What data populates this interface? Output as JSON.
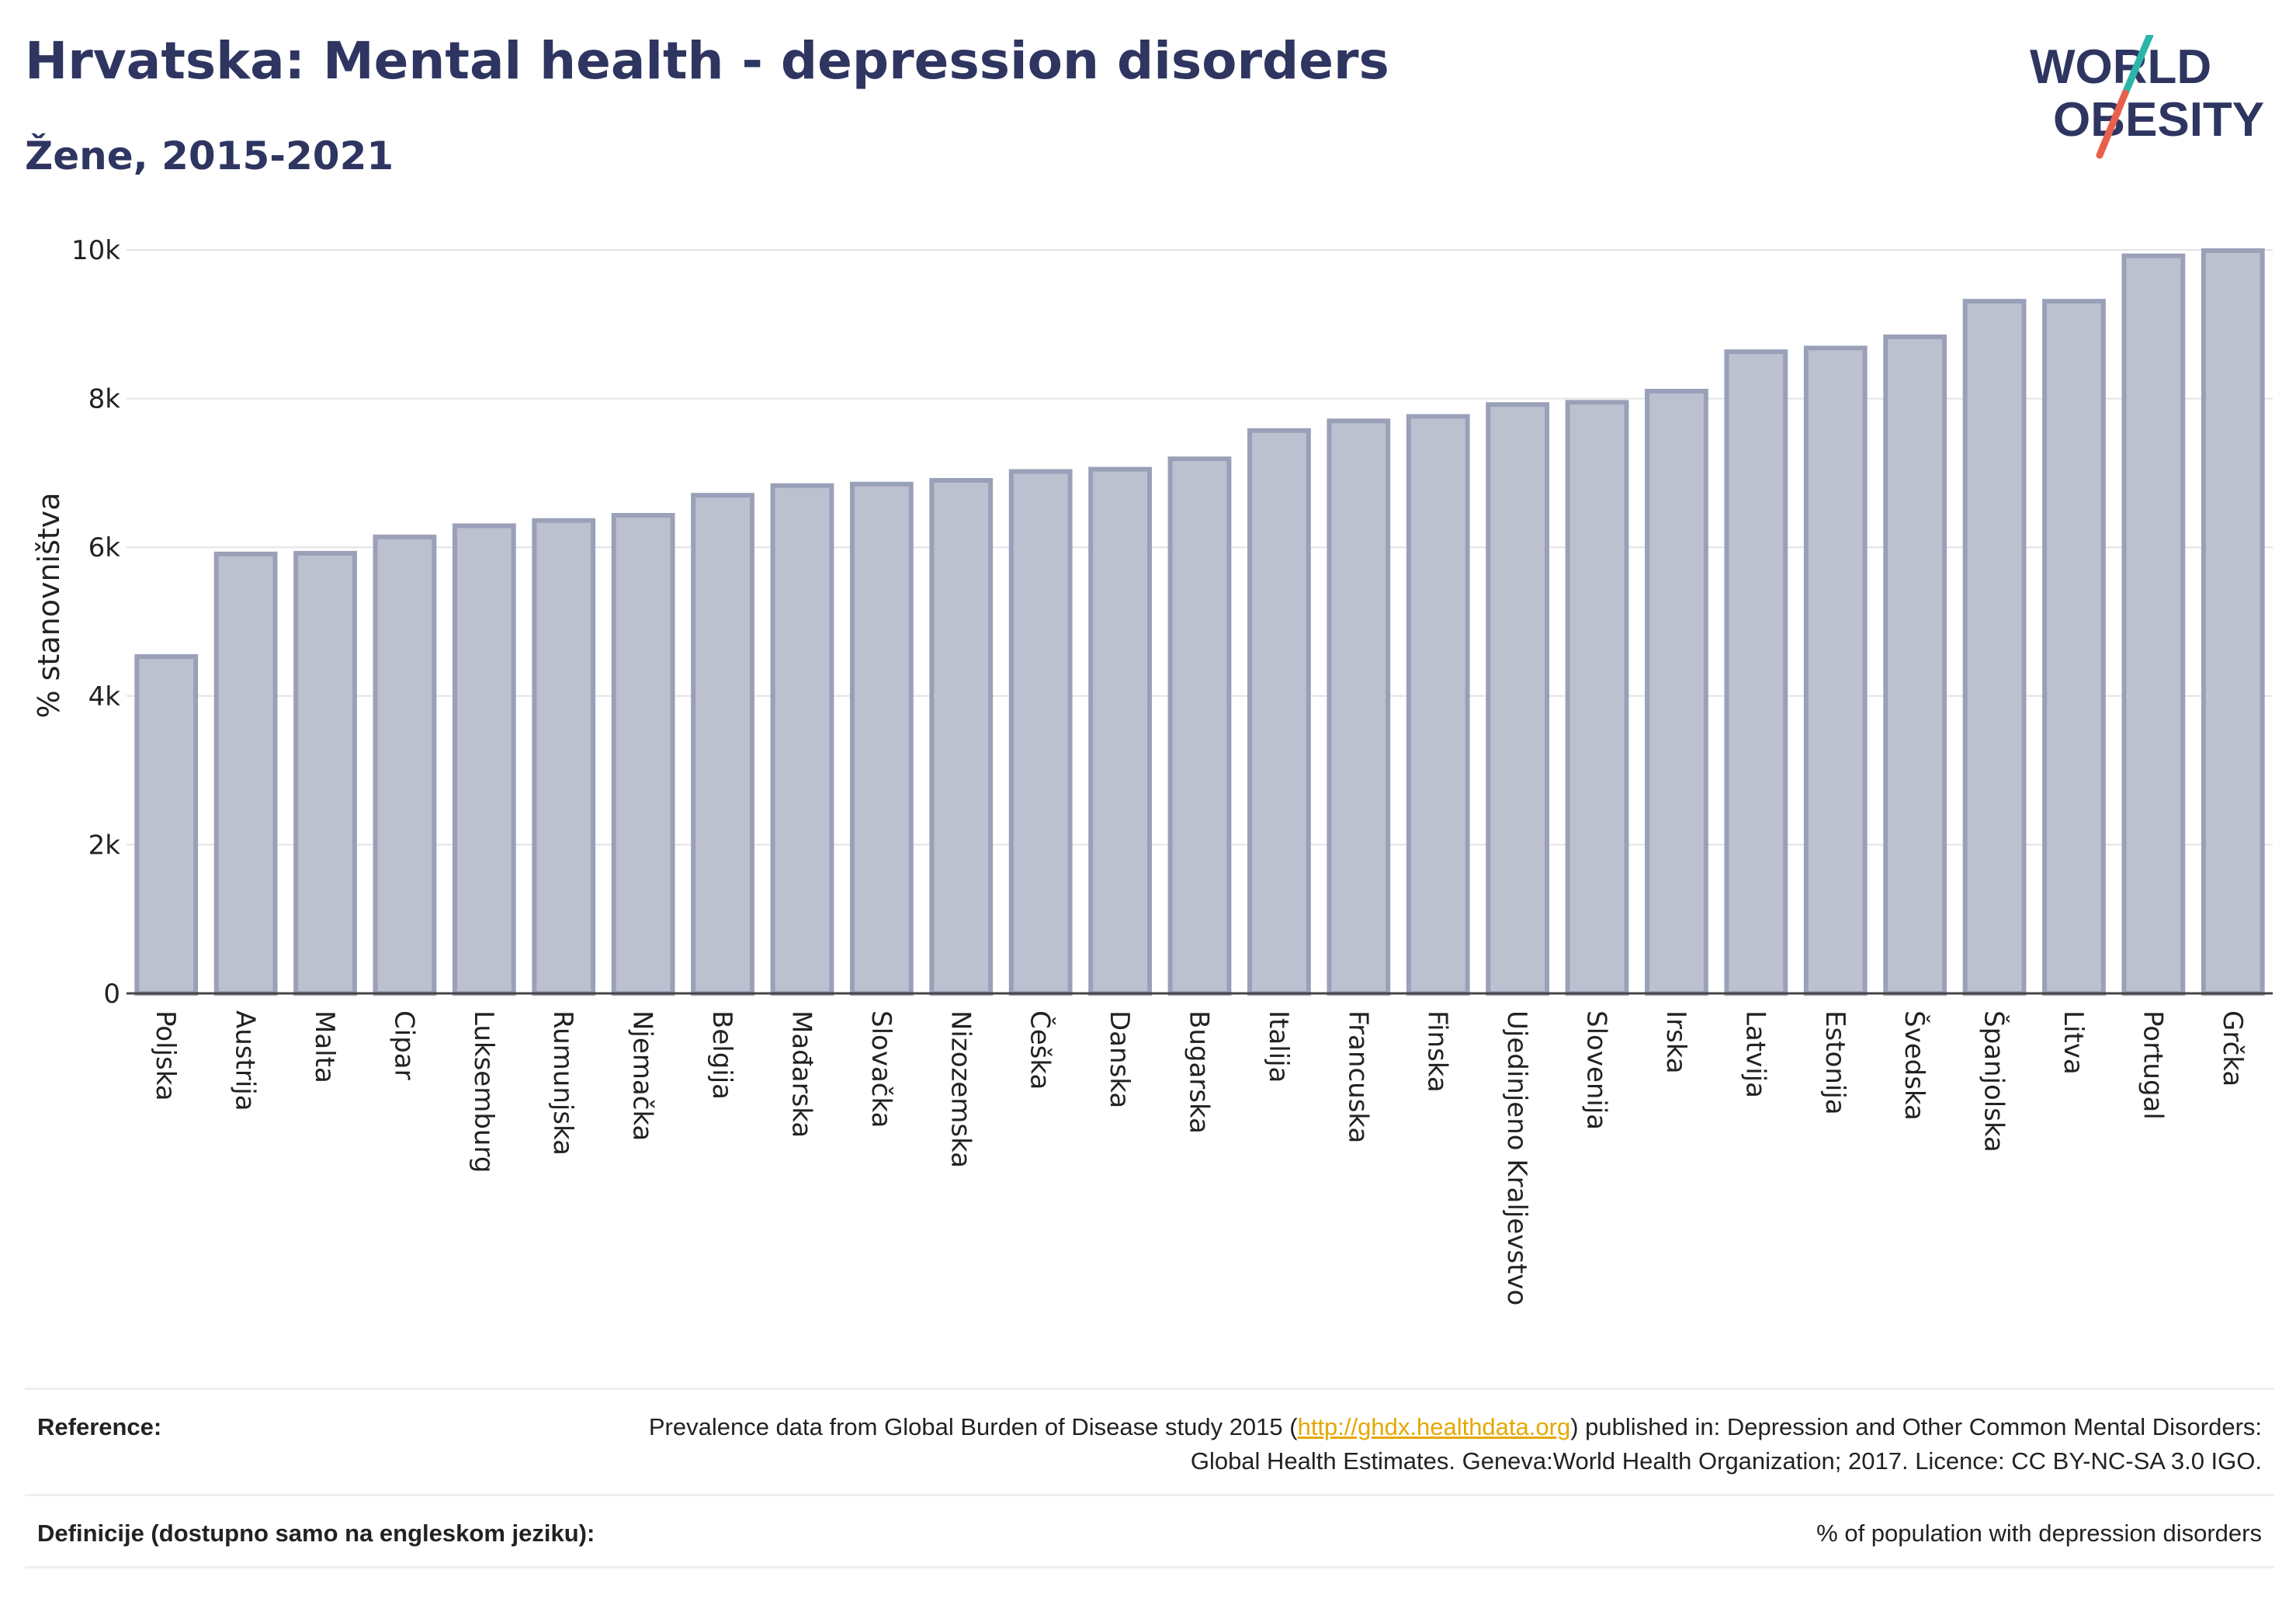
{
  "header": {
    "title": "Hrvatska: Mental health - depression disorders",
    "subtitle": "Žene, 2015-2021"
  },
  "logo": {
    "line1": "WORLD",
    "line2": "OBESITY"
  },
  "chart_data": {
    "type": "bar",
    "title": "Hrvatska: Mental health - depression disorders",
    "subtitle": "Žene, 2015-2021",
    "ylabel": "% stanovništva",
    "xlabel": "",
    "ylim": [
      0,
      10000
    ],
    "yticks": [
      0,
      2000,
      4000,
      6000,
      8000,
      10000
    ],
    "ytick_labels": [
      "0",
      "2k",
      "4k",
      "6k",
      "8k",
      "10k"
    ],
    "grid": true,
    "bar_fill": "#bdc0cf",
    "bar_stroke": "#9aa0b8",
    "categories": [
      "Poljska",
      "Austrija",
      "Malta",
      "Cipar",
      "Luksemburg",
      "Rumunjska",
      "Njemačka",
      "Belgija",
      "Mađarska",
      "Slovačka",
      "Nizozemska",
      "Češka",
      "Danska",
      "Bugarska",
      "Italija",
      "Francuska",
      "Finska",
      "Ujedinjeno Kraljevstvo",
      "Slovenija",
      "Irska",
      "Latvija",
      "Estonija",
      "Švedska",
      "Španjolska",
      "Litva",
      "Portugal",
      "Grčka"
    ],
    "values": [
      4530,
      5910,
      5920,
      6140,
      6290,
      6360,
      6430,
      6700,
      6830,
      6850,
      6900,
      7020,
      7050,
      7190,
      7570,
      7700,
      7760,
      7920,
      7950,
      8100,
      8630,
      8680,
      8830,
      9310,
      9310,
      9920,
      9990
    ]
  },
  "reference": {
    "label": "Reference:",
    "text_before": "Prevalence data from Global Burden of Disease study 2015 (",
    "link": "http://ghdx.healthdata.org",
    "text_after": ") published in: Depression and Other Common Mental Disorders: Global Health Estimates. Geneva:World Health Organization; 2017. Licence: CC BY-NC-SA 3.0 IGO."
  },
  "definitions": {
    "label": "Definicije (dostupno samo na engleskom jeziku):",
    "text": "% of population with depression disorders"
  }
}
